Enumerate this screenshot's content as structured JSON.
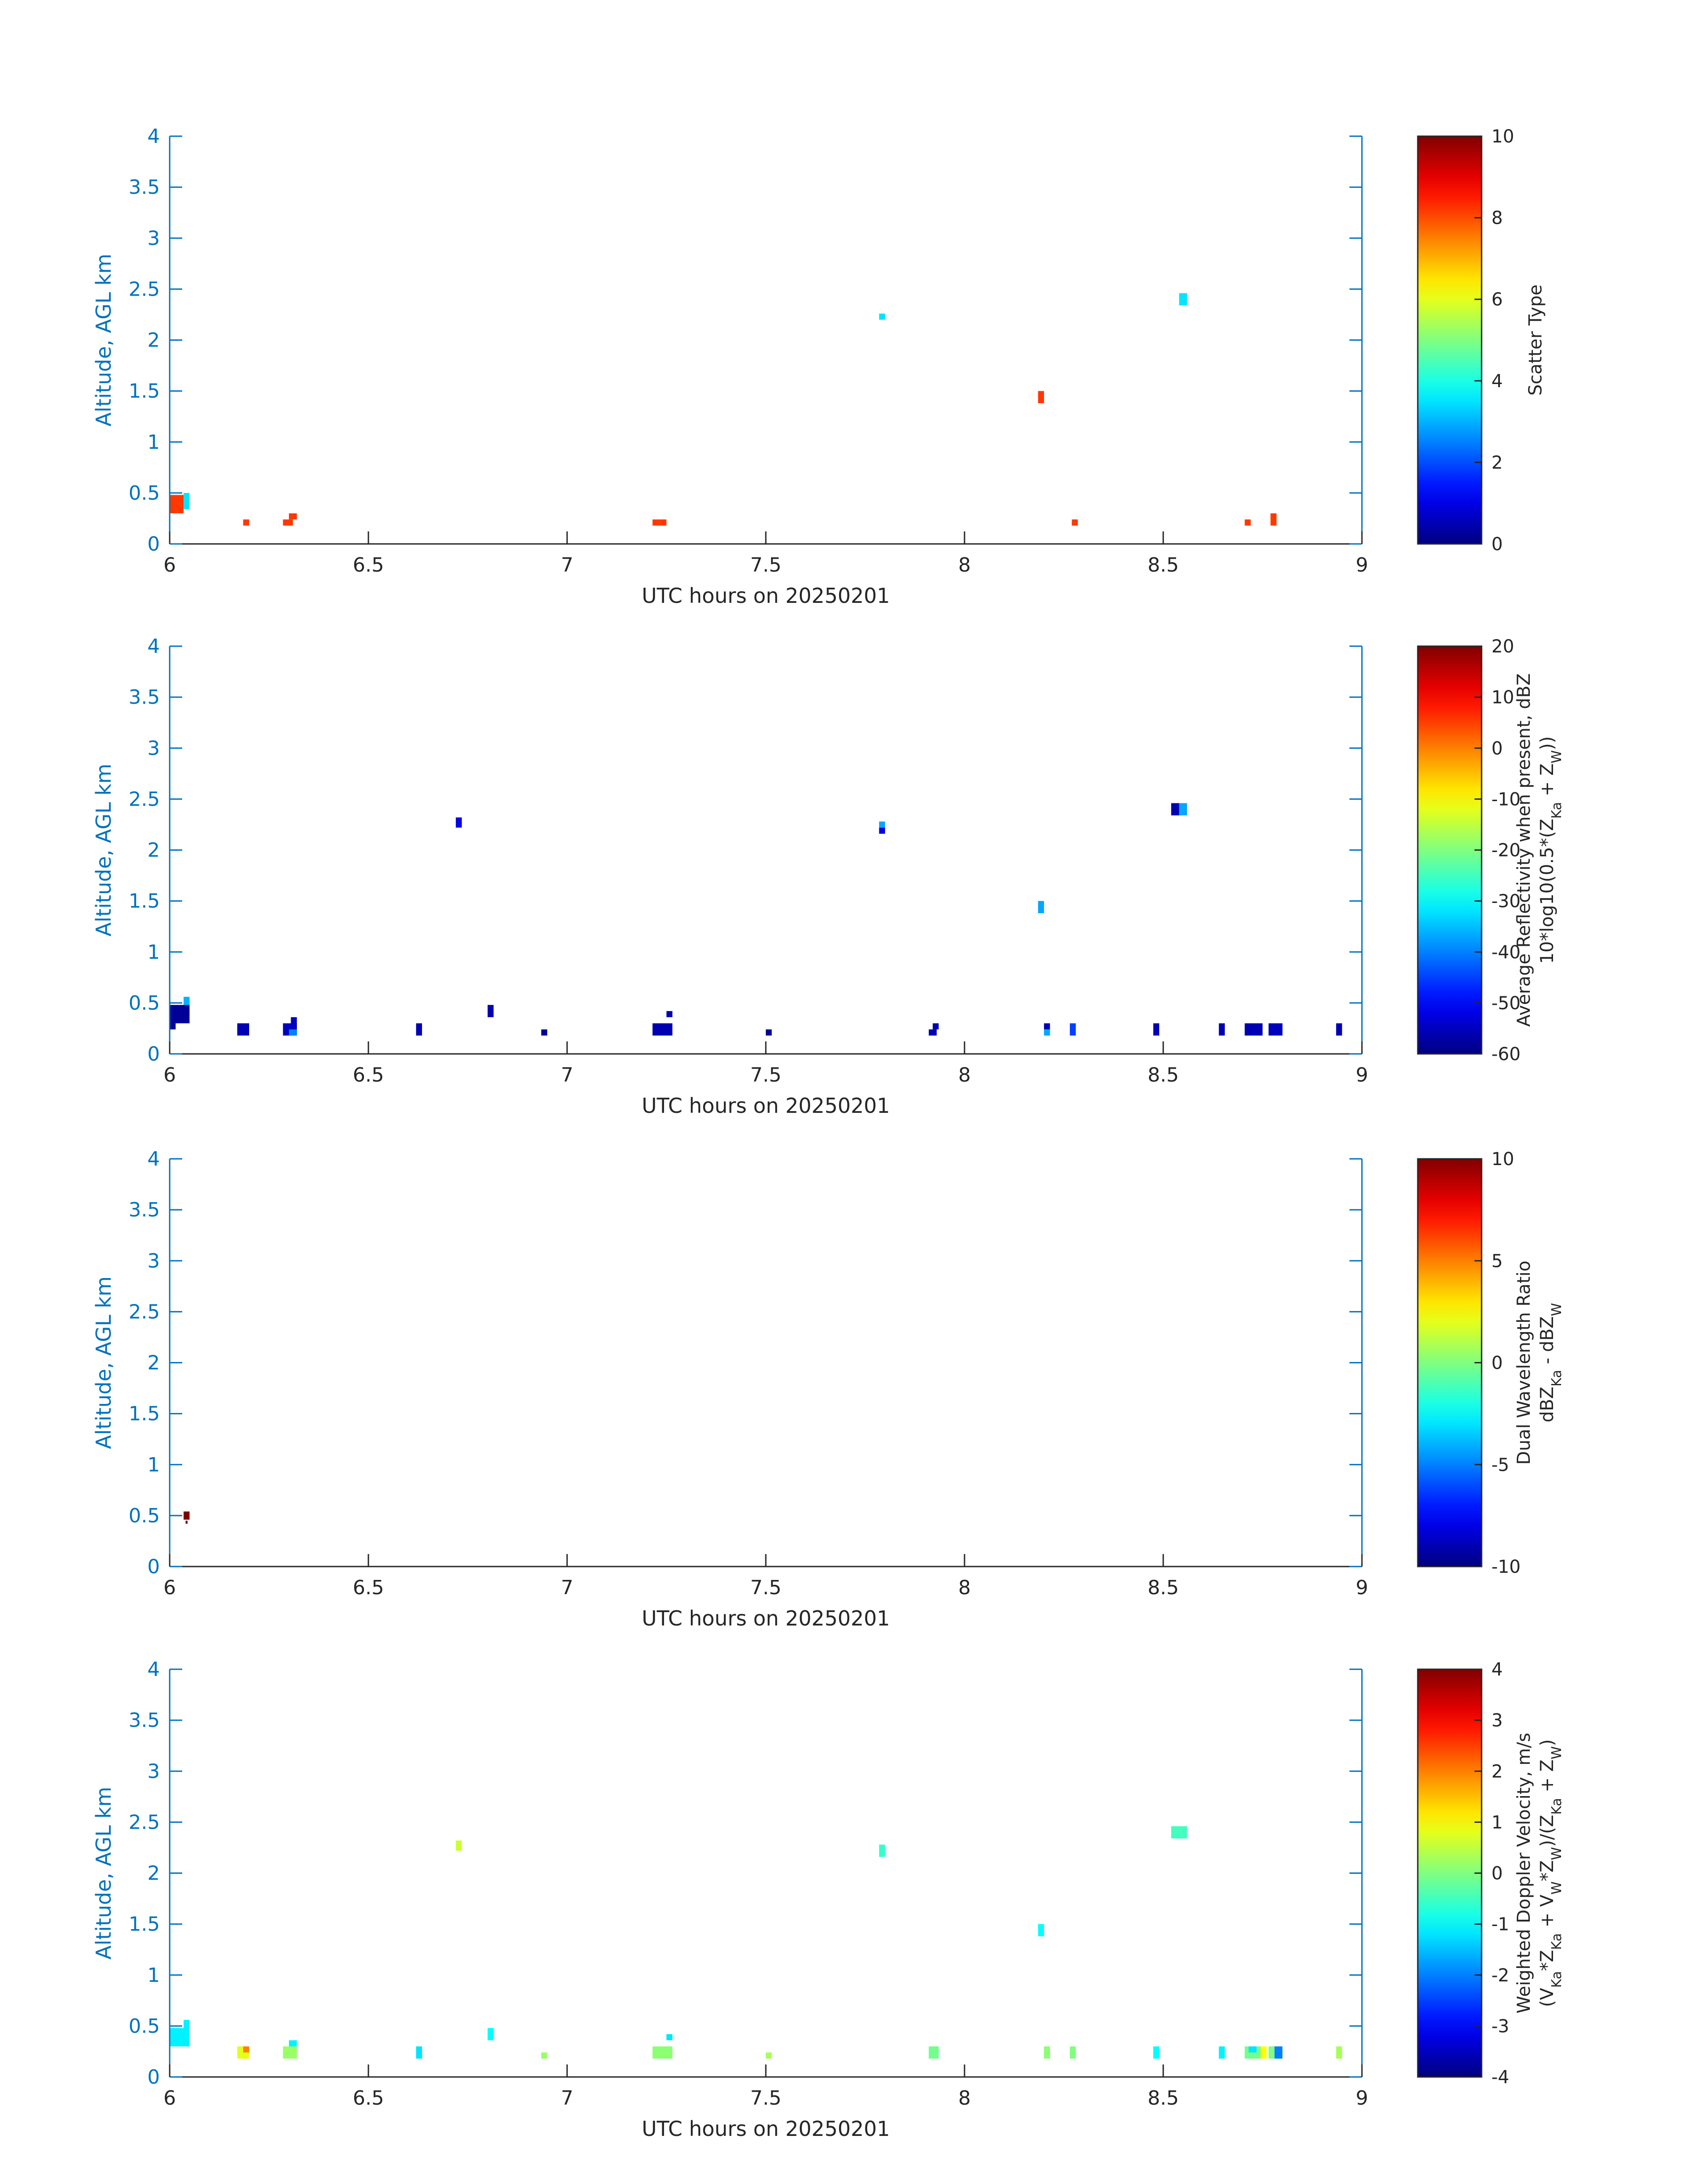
{
  "chart_data": [
    {
      "type": "heatmap",
      "xlabel": "UTC hours on 20250201",
      "ylabel": "Altitude, AGL km",
      "xlim": [
        6,
        9
      ],
      "ylim": [
        0,
        4
      ],
      "xticks": [
        "6",
        "6.5",
        "7",
        "7.5",
        "8",
        "8.5",
        "9"
      ],
      "yticks": [
        "0",
        "0.5",
        "1",
        "1.5",
        "2",
        "2.5",
        "3",
        "3.5",
        "4"
      ],
      "colorbar": {
        "label": [
          "Scatter Type"
        ],
        "range": [
          0,
          10
        ],
        "ticks": [
          "0",
          "2",
          "4",
          "6",
          "8",
          "10"
        ],
        "colormap": "jet"
      },
      "cells": [
        {
          "x": 6.0,
          "x2": 6.035,
          "y": 0.3,
          "y2": 0.48,
          "v": 8.2
        },
        {
          "x": 6.035,
          "x2": 6.05,
          "y": 0.34,
          "y2": 0.5,
          "v": 3.5
        },
        {
          "x": 6.185,
          "x2": 6.2,
          "y": 0.18,
          "y2": 0.24,
          "v": 8.2
        },
        {
          "x": 6.285,
          "x2": 6.31,
          "y": 0.18,
          "y2": 0.24,
          "v": 8.2
        },
        {
          "x": 6.3,
          "x2": 6.32,
          "y": 0.24,
          "y2": 0.3,
          "v": 8.2
        },
        {
          "x": 7.215,
          "x2": 7.25,
          "y": 0.18,
          "y2": 0.24,
          "v": 8.2
        },
        {
          "x": 7.785,
          "x2": 7.8,
          "y": 2.2,
          "y2": 2.26,
          "v": 3.5
        },
        {
          "x": 8.185,
          "x2": 8.2,
          "y": 1.38,
          "y2": 1.5,
          "v": 8.2
        },
        {
          "x": 8.27,
          "x2": 8.285,
          "y": 0.18,
          "y2": 0.24,
          "v": 8.2
        },
        {
          "x": 8.54,
          "x2": 8.56,
          "y": 2.34,
          "y2": 2.46,
          "v": 3.5
        },
        {
          "x": 8.705,
          "x2": 8.72,
          "y": 0.18,
          "y2": 0.24,
          "v": 8.2
        },
        {
          "x": 8.77,
          "x2": 8.785,
          "y": 0.18,
          "y2": 0.3,
          "v": 8.2
        }
      ]
    },
    {
      "type": "heatmap",
      "xlabel": "UTC hours on 20250201",
      "ylabel": "Altitude, AGL km",
      "xlim": [
        6,
        9
      ],
      "ylim": [
        0,
        4
      ],
      "xticks": [
        "6",
        "6.5",
        "7",
        "7.5",
        "8",
        "8.5",
        "9"
      ],
      "yticks": [
        "0",
        "0.5",
        "1",
        "1.5",
        "2",
        "2.5",
        "3",
        "3.5",
        "4"
      ],
      "colorbar": {
        "label": [
          "Average Reflectivity when present, dBZ",
          "10*log10(0.5*(Z_Ka + Z_W))"
        ],
        "range": [
          -60,
          20
        ],
        "ticks": [
          "-60",
          "-50",
          "-40",
          "-30",
          "-20",
          "-10",
          "0",
          "10",
          "20"
        ],
        "colormap": "jet"
      },
      "cells": [
        {
          "x": 6.0,
          "x2": 6.05,
          "y": 0.3,
          "y2": 0.48,
          "v": -58
        },
        {
          "x": 6.0,
          "x2": 6.015,
          "y": 0.24,
          "y2": 0.3,
          "v": -58
        },
        {
          "x": 6.035,
          "x2": 6.05,
          "y": 0.48,
          "y2": 0.56,
          "v": -36
        },
        {
          "x": 6.17,
          "x2": 6.2,
          "y": 0.18,
          "y2": 0.3,
          "v": -56
        },
        {
          "x": 6.285,
          "x2": 6.32,
          "y": 0.18,
          "y2": 0.3,
          "v": -55
        },
        {
          "x": 6.3,
          "x2": 6.32,
          "y": 0.18,
          "y2": 0.24,
          "v": -40
        },
        {
          "x": 6.305,
          "x2": 6.32,
          "y": 0.3,
          "y2": 0.36,
          "v": -55
        },
        {
          "x": 6.62,
          "x2": 6.635,
          "y": 0.18,
          "y2": 0.3,
          "v": -56
        },
        {
          "x": 6.72,
          "x2": 6.735,
          "y": 2.22,
          "y2": 2.32,
          "v": -52
        },
        {
          "x": 6.8,
          "x2": 6.815,
          "y": 0.36,
          "y2": 0.48,
          "v": -56
        },
        {
          "x": 6.935,
          "x2": 6.95,
          "y": 0.18,
          "y2": 0.24,
          "v": -58
        },
        {
          "x": 7.215,
          "x2": 7.265,
          "y": 0.18,
          "y2": 0.3,
          "v": -56
        },
        {
          "x": 7.25,
          "x2": 7.265,
          "y": 0.36,
          "y2": 0.42,
          "v": -56
        },
        {
          "x": 7.5,
          "x2": 7.515,
          "y": 0.18,
          "y2": 0.24,
          "v": -58
        },
        {
          "x": 7.785,
          "x2": 7.8,
          "y": 2.22,
          "y2": 2.28,
          "v": -37
        },
        {
          "x": 7.785,
          "x2": 7.8,
          "y": 2.16,
          "y2": 2.22,
          "v": -52
        },
        {
          "x": 7.91,
          "x2": 7.93,
          "y": 0.18,
          "y2": 0.24,
          "v": -56
        },
        {
          "x": 7.92,
          "x2": 7.935,
          "y": 0.24,
          "y2": 0.3,
          "v": -56
        },
        {
          "x": 8.185,
          "x2": 8.2,
          "y": 1.38,
          "y2": 1.5,
          "v": -37
        },
        {
          "x": 8.2,
          "x2": 8.215,
          "y": 0.24,
          "y2": 0.3,
          "v": -56
        },
        {
          "x": 8.2,
          "x2": 8.215,
          "y": 0.18,
          "y2": 0.24,
          "v": -37
        },
        {
          "x": 8.265,
          "x2": 8.28,
          "y": 0.18,
          "y2": 0.3,
          "v": -45
        },
        {
          "x": 8.475,
          "x2": 8.49,
          "y": 0.18,
          "y2": 0.3,
          "v": -56
        },
        {
          "x": 8.52,
          "x2": 8.54,
          "y": 2.34,
          "y2": 2.46,
          "v": -56
        },
        {
          "x": 8.54,
          "x2": 8.56,
          "y": 2.34,
          "y2": 2.46,
          "v": -37
        },
        {
          "x": 8.64,
          "x2": 8.655,
          "y": 0.18,
          "y2": 0.3,
          "v": -56
        },
        {
          "x": 8.705,
          "x2": 8.75,
          "y": 0.18,
          "y2": 0.3,
          "v": -56
        },
        {
          "x": 8.765,
          "x2": 8.8,
          "y": 0.18,
          "y2": 0.3,
          "v": -55
        },
        {
          "x": 8.935,
          "x2": 8.95,
          "y": 0.18,
          "y2": 0.3,
          "v": -56
        }
      ]
    },
    {
      "type": "heatmap",
      "xlabel": "UTC hours on 20250201",
      "ylabel": "Altitude, AGL km",
      "xlim": [
        6,
        9
      ],
      "ylim": [
        0,
        4
      ],
      "xticks": [
        "6",
        "6.5",
        "7",
        "7.5",
        "8",
        "8.5",
        "9"
      ],
      "yticks": [
        "0",
        "0.5",
        "1",
        "1.5",
        "2",
        "2.5",
        "3",
        "3.5",
        "4"
      ],
      "colorbar": {
        "label": [
          "Dual Wavelength Ratio",
          "dBZ_Ka - dBZ_W"
        ],
        "range": [
          -10,
          10
        ],
        "ticks": [
          "-10",
          "-5",
          "0",
          "5",
          "10"
        ],
        "colormap": "jet"
      },
      "cells": [
        {
          "x": 6.035,
          "x2": 6.05,
          "y": 0.46,
          "y2": 0.54,
          "v": 10
        },
        {
          "x": 6.04,
          "x2": 6.045,
          "y": 0.42,
          "y2": 0.45,
          "v": 10
        }
      ]
    },
    {
      "type": "heatmap",
      "xlabel": "UTC hours on 20250201",
      "ylabel": "Altitude, AGL km",
      "xlim": [
        6,
        9
      ],
      "ylim": [
        0,
        4
      ],
      "xticks": [
        "6",
        "6.5",
        "7",
        "7.5",
        "8",
        "8.5",
        "9"
      ],
      "yticks": [
        "0",
        "0.5",
        "1",
        "1.5",
        "2",
        "2.5",
        "3",
        "3.5",
        "4"
      ],
      "colorbar": {
        "label": [
          "Weighted Doppler Velocity, m/s",
          "(V_Ka*Z_Ka + V_W*Z_W)/(Z_Ka + Z_W)"
        ],
        "range": [
          -4,
          4
        ],
        "ticks": [
          "-4",
          "-3",
          "-2",
          "-1",
          "0",
          "1",
          "2",
          "3",
          "4"
        ],
        "colormap": "jet"
      },
      "cells": [
        {
          "x": 6.0,
          "x2": 6.05,
          "y": 0.3,
          "y2": 0.48,
          "v": -1.1
        },
        {
          "x": 6.035,
          "x2": 6.05,
          "y": 0.48,
          "y2": 0.56,
          "v": -1.1
        },
        {
          "x": 6.17,
          "x2": 6.2,
          "y": 0.18,
          "y2": 0.3,
          "v": 0.8
        },
        {
          "x": 6.185,
          "x2": 6.2,
          "y": 0.24,
          "y2": 0.3,
          "v": 2.0
        },
        {
          "x": 6.285,
          "x2": 6.32,
          "y": 0.18,
          "y2": 0.3,
          "v": 0.2
        },
        {
          "x": 6.3,
          "x2": 6.32,
          "y": 0.3,
          "y2": 0.36,
          "v": -1.1
        },
        {
          "x": 6.62,
          "x2": 6.635,
          "y": 0.18,
          "y2": 0.3,
          "v": -1.2
        },
        {
          "x": 6.72,
          "x2": 6.735,
          "y": 2.22,
          "y2": 2.32,
          "v": 0.6
        },
        {
          "x": 6.8,
          "x2": 6.815,
          "y": 0.36,
          "y2": 0.48,
          "v": -1.0
        },
        {
          "x": 6.935,
          "x2": 6.95,
          "y": 0.18,
          "y2": 0.24,
          "v": 0.2
        },
        {
          "x": 7.215,
          "x2": 7.265,
          "y": 0.18,
          "y2": 0.3,
          "v": 0.1
        },
        {
          "x": 7.25,
          "x2": 7.265,
          "y": 0.36,
          "y2": 0.42,
          "v": -1.2
        },
        {
          "x": 7.5,
          "x2": 7.515,
          "y": 0.18,
          "y2": 0.24,
          "v": 0.3
        },
        {
          "x": 7.785,
          "x2": 7.8,
          "y": 2.16,
          "y2": 2.28,
          "v": -0.6
        },
        {
          "x": 7.91,
          "x2": 7.935,
          "y": 0.18,
          "y2": 0.3,
          "v": -0.1
        },
        {
          "x": 8.185,
          "x2": 8.2,
          "y": 1.38,
          "y2": 1.5,
          "v": -1.0
        },
        {
          "x": 8.2,
          "x2": 8.215,
          "y": 0.18,
          "y2": 0.3,
          "v": 0.1
        },
        {
          "x": 8.265,
          "x2": 8.28,
          "y": 0.18,
          "y2": 0.3,
          "v": 0.0
        },
        {
          "x": 8.475,
          "x2": 8.49,
          "y": 0.18,
          "y2": 0.3,
          "v": -1.0
        },
        {
          "x": 8.52,
          "x2": 8.56,
          "y": 2.34,
          "y2": 2.46,
          "v": -0.5
        },
        {
          "x": 8.64,
          "x2": 8.655,
          "y": 0.18,
          "y2": 0.3,
          "v": -1.1
        },
        {
          "x": 8.705,
          "x2": 8.75,
          "y": 0.18,
          "y2": 0.3,
          "v": -0.1
        },
        {
          "x": 8.715,
          "x2": 8.735,
          "y": 0.24,
          "y2": 0.3,
          "v": -1.2
        },
        {
          "x": 8.745,
          "x2": 8.76,
          "y": 0.18,
          "y2": 0.3,
          "v": 1.0
        },
        {
          "x": 8.765,
          "x2": 8.78,
          "y": 0.18,
          "y2": 0.3,
          "v": 0.0
        },
        {
          "x": 8.78,
          "x2": 8.8,
          "y": 0.18,
          "y2": 0.3,
          "v": -2.0
        },
        {
          "x": 8.935,
          "x2": 8.95,
          "y": 0.18,
          "y2": 0.3,
          "v": 0.3
        }
      ]
    }
  ]
}
